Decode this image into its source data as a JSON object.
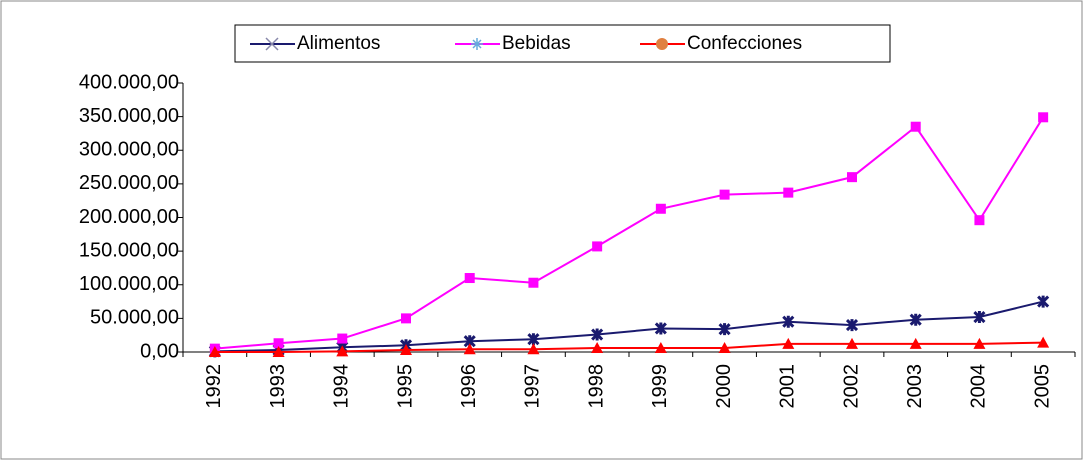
{
  "chart_data": {
    "type": "line",
    "categories": [
      "1992",
      "1993",
      "1994",
      "1995",
      "1996",
      "1997",
      "1998",
      "1999",
      "2000",
      "2001",
      "2002",
      "2003",
      "2004",
      "2005"
    ],
    "series": [
      {
        "name": "Alimentos",
        "color": "#1a1a6e",
        "marker_color": "#1a1a6e",
        "values": [
          1000,
          3000,
          7000,
          10000,
          16000,
          19000,
          26000,
          35000,
          34000,
          45000,
          40000,
          48000,
          52000,
          75000
        ]
      },
      {
        "name": "Bebidas",
        "color": "#ff00ff",
        "marker_color": "#ff00ff",
        "values": [
          5000,
          13000,
          20000,
          50000,
          110000,
          103000,
          157000,
          213000,
          234000,
          237000,
          260000,
          335000,
          196000,
          349000
        ]
      },
      {
        "name": "Confecciones",
        "color": "#ff0000",
        "marker_color": "#e08040",
        "values": [
          0,
          0,
          1000,
          3000,
          4000,
          4000,
          6000,
          6000,
          6000,
          12000,
          12000,
          12000,
          12000,
          14000
        ]
      }
    ],
    "ylim": [
      0,
      400000
    ],
    "yticks": [
      {
        "value": 0,
        "label": "0,00"
      },
      {
        "value": 50000,
        "label": "50.000,00"
      },
      {
        "value": 100000,
        "label": "100.000,00"
      },
      {
        "value": 150000,
        "label": "150.000,00"
      },
      {
        "value": 200000,
        "label": "200.000,00"
      },
      {
        "value": 250000,
        "label": "250.000,00"
      },
      {
        "value": 300000,
        "label": "300.000,00"
      },
      {
        "value": 350000,
        "label": "350.000,00"
      },
      {
        "value": 400000,
        "label": "400.000,00"
      }
    ],
    "legend": "top"
  }
}
